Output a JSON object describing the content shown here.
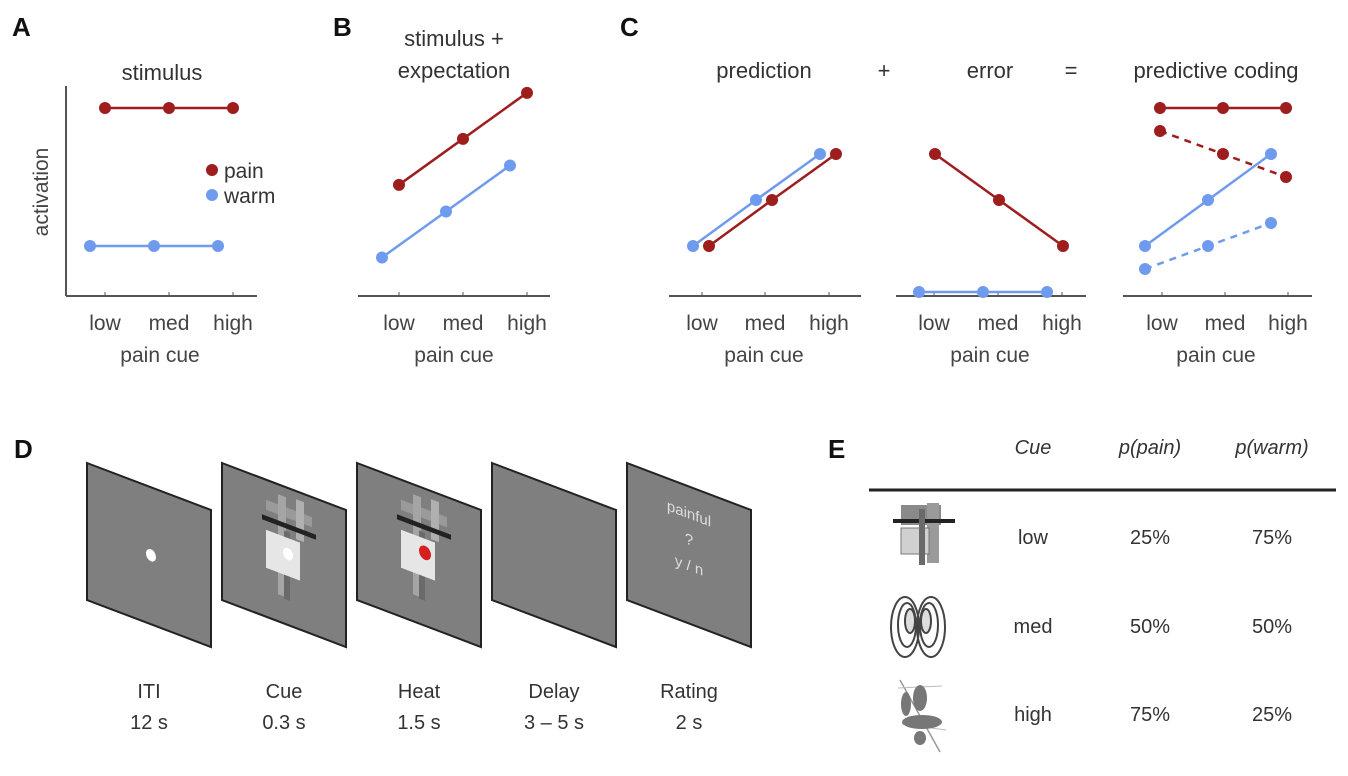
{
  "panels": {
    "A": {
      "letter": "A"
    },
    "B": {
      "letter": "B"
    },
    "C": {
      "letter": "C",
      "operator_plus": "+",
      "operator_equals": "="
    },
    "D": {
      "letter": "D"
    },
    "E": {
      "letter": "E"
    }
  },
  "legend": {
    "items": [
      {
        "label": "pain",
        "color": "#9e1d1d"
      },
      {
        "label": "warm",
        "color": "#6f9bef"
      }
    ]
  },
  "colors": {
    "pain": "#9e1d1d",
    "warm": "#6f9bef",
    "screen": "#7f7f7f",
    "heat_dot": "#d42020"
  },
  "chart_data": [
    {
      "id": "stimulus",
      "type": "line",
      "title": [
        "stimulus"
      ],
      "xlabel": "pain cue",
      "ylabel": "activation",
      "categories": [
        "low",
        "med",
        "high"
      ],
      "legend": "right",
      "grid": false,
      "series": [
        {
          "name": "pain",
          "color": "#9e1d1d",
          "style": "solid",
          "values": [
            4,
            4,
            4
          ]
        },
        {
          "name": "warm",
          "color": "#6f9bef",
          "style": "solid",
          "values": [
            1,
            1,
            1
          ]
        }
      ]
    },
    {
      "id": "stimulus-expectation",
      "type": "line",
      "title": [
        "stimulus +",
        "expectation"
      ],
      "xlabel": "pain cue",
      "ylabel": "",
      "categories": [
        "low",
        "med",
        "high"
      ],
      "grid": false,
      "series": [
        {
          "name": "pain",
          "color": "#9e1d1d",
          "style": "solid",
          "values": [
            2.33,
            3.33,
            4.33
          ]
        },
        {
          "name": "warm",
          "color": "#6f9bef",
          "style": "solid",
          "values": [
            0.75,
            1.75,
            2.75
          ]
        }
      ]
    },
    {
      "id": "prediction",
      "type": "line",
      "title": [
        "prediction"
      ],
      "xlabel": "pain cue",
      "ylabel": "",
      "categories": [
        "low",
        "med",
        "high"
      ],
      "grid": false,
      "series": [
        {
          "name": "warm",
          "color": "#6f9bef",
          "style": "solid",
          "values": [
            1,
            2,
            3
          ]
        },
        {
          "name": "pain",
          "color": "#9e1d1d",
          "style": "solid",
          "values": [
            1,
            2,
            3
          ]
        }
      ]
    },
    {
      "id": "error",
      "type": "line",
      "title": [
        "error"
      ],
      "xlabel": "pain cue",
      "ylabel": "",
      "categories": [
        "low",
        "med",
        "high"
      ],
      "grid": false,
      "series": [
        {
          "name": "pain",
          "color": "#9e1d1d",
          "style": "solid",
          "values": [
            3,
            2,
            1
          ]
        },
        {
          "name": "warm",
          "color": "#6f9bef",
          "style": "solid",
          "values": [
            0,
            0,
            0
          ]
        }
      ]
    },
    {
      "id": "predictive-coding",
      "type": "line",
      "title": [
        "predictive coding"
      ],
      "xlabel": "pain cue",
      "ylabel": "",
      "categories": [
        "low",
        "med",
        "high"
      ],
      "grid": false,
      "series": [
        {
          "name": "pain",
          "color": "#9e1d1d",
          "style": "solid",
          "values": [
            4,
            4,
            4
          ]
        },
        {
          "name": "pain",
          "color": "#9e1d1d",
          "style": "dashed",
          "values": [
            3.5,
            3,
            2.5
          ]
        },
        {
          "name": "warm",
          "color": "#6f9bef",
          "style": "solid",
          "values": [
            1,
            2,
            3
          ]
        },
        {
          "name": "warm",
          "color": "#6f9bef",
          "style": "dashed",
          "values": [
            0.5,
            1,
            1.5
          ]
        }
      ]
    }
  ],
  "timeline": [
    {
      "label": "ITI",
      "duration": "12 s",
      "content": "fixation-dot"
    },
    {
      "label": "Cue",
      "duration": "0.3 s",
      "content": "cue-image"
    },
    {
      "label": "Heat",
      "duration": "1.5 s",
      "content": "cue-image-with-heat-dot"
    },
    {
      "label": "Delay",
      "duration": "3 – 5 s",
      "content": "blank"
    },
    {
      "label": "Rating",
      "duration": "2 s",
      "content": "rating-prompt",
      "prompt": [
        "painful",
        "?",
        "y / n"
      ]
    }
  ],
  "table": {
    "headers": [
      "Cue",
      "p(pain)",
      "p(warm)"
    ],
    "rows": [
      {
        "icon": "block-figure-icon",
        "cue": "low",
        "p_pain": "25%",
        "p_warm": "75%"
      },
      {
        "icon": "shell-figure-icon",
        "cue": "med",
        "p_pain": "50%",
        "p_warm": "50%"
      },
      {
        "icon": "ellipse-figure-icon",
        "cue": "high",
        "p_pain": "75%",
        "p_warm": "25%"
      }
    ]
  }
}
